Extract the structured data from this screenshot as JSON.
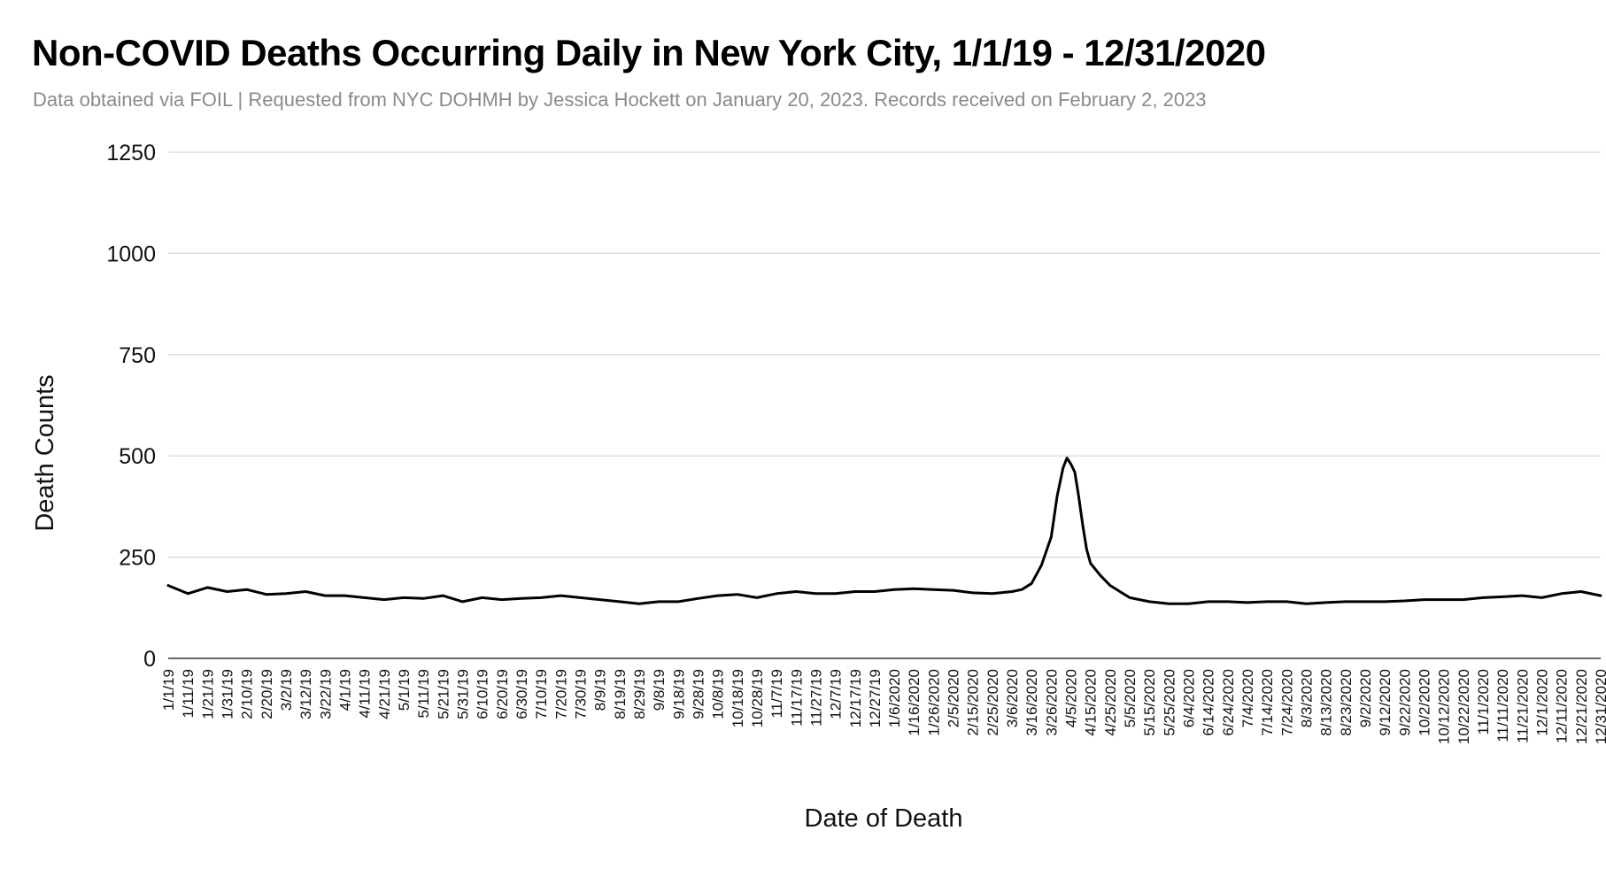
{
  "chart_data": {
    "type": "line",
    "title": "Non-COVID Deaths Occurring Daily in New York City, 1/1/19 - 12/31/2020",
    "subtitle": "Data obtained via FOIL | Requested from NYC DOHMH by Jessica Hockett on January 20, 2023. Records received on February 2, 2023",
    "xlabel": "Date of Death",
    "ylabel": "Death Counts",
    "ylim": [
      0,
      1250
    ],
    "yticks": [
      0,
      250,
      500,
      750,
      1000,
      1250
    ],
    "grid": true,
    "legend": "none",
    "x_tick_labels": [
      "1/1/19",
      "1/11/19",
      "1/21/19",
      "1/31/19",
      "2/10/19",
      "2/20/19",
      "3/2/19",
      "3/12/19",
      "3/22/19",
      "4/1/19",
      "4/11/19",
      "4/21/19",
      "5/1/19",
      "5/11/19",
      "5/21/19",
      "5/31/19",
      "6/10/19",
      "6/20/19",
      "6/30/19",
      "7/10/19",
      "7/20/19",
      "7/30/19",
      "8/9/19",
      "8/19/19",
      "8/29/19",
      "9/8/19",
      "9/18/19",
      "9/28/19",
      "10/8/19",
      "10/18/19",
      "10/28/19",
      "11/7/19",
      "11/17/19",
      "11/27/19",
      "12/7/19",
      "12/17/19",
      "12/27/19",
      "1/6/2020",
      "1/16/2020",
      "1/26/2020",
      "2/5/2020",
      "2/15/2020",
      "2/25/2020",
      "3/6/2020",
      "3/16/2020",
      "3/26/2020",
      "4/5/2020",
      "4/15/2020",
      "4/25/2020",
      "5/5/2020",
      "5/15/2020",
      "5/25/2020",
      "6/4/2020",
      "6/14/2020",
      "6/24/2020",
      "7/4/2020",
      "7/14/2020",
      "7/24/2020",
      "8/3/2020",
      "8/13/2020",
      "8/23/2020",
      "9/2/2020",
      "9/12/2020",
      "9/22/2020",
      "10/2/2020",
      "10/12/2020",
      "10/22/2020",
      "11/1/2020",
      "11/11/2020",
      "11/21/2020",
      "12/1/2020",
      "12/11/2020",
      "12/21/2020",
      "12/31/2020"
    ],
    "series": [
      {
        "color": "#000000",
        "x": [
          "1/1/19",
          "1/11/19",
          "1/21/19",
          "1/31/19",
          "2/10/19",
          "2/20/19",
          "3/2/19",
          "3/12/19",
          "3/22/19",
          "4/1/19",
          "4/11/19",
          "4/21/19",
          "5/1/19",
          "5/11/19",
          "5/21/19",
          "5/31/19",
          "6/10/19",
          "6/20/19",
          "6/30/19",
          "7/10/19",
          "7/20/19",
          "7/30/19",
          "8/9/19",
          "8/19/19",
          "8/29/19",
          "9/8/19",
          "9/18/19",
          "9/28/19",
          "10/8/19",
          "10/18/19",
          "10/28/19",
          "11/7/19",
          "11/17/19",
          "11/27/19",
          "12/7/19",
          "12/17/19",
          "12/27/19",
          "1/6/2020",
          "1/16/2020",
          "1/26/2020",
          "2/5/2020",
          "2/15/2020",
          "2/25/2020",
          "3/6/2020",
          "3/11/2020",
          "3/16/2020",
          "3/21/2020",
          "3/26/2020",
          "3/29/2020",
          "4/1/2020",
          "4/3/2020",
          "4/5/2020",
          "4/7/2020",
          "4/9/2020",
          "4/11/2020",
          "4/13/2020",
          "4/15/2020",
          "4/20/2020",
          "4/25/2020",
          "5/5/2020",
          "5/15/2020",
          "5/25/2020",
          "6/4/2020",
          "6/14/2020",
          "6/24/2020",
          "7/4/2020",
          "7/14/2020",
          "7/24/2020",
          "8/3/2020",
          "8/13/2020",
          "8/23/2020",
          "9/2/2020",
          "9/12/2020",
          "9/22/2020",
          "10/2/2020",
          "10/12/2020",
          "10/22/2020",
          "11/1/2020",
          "11/11/2020",
          "11/21/2020",
          "12/1/2020",
          "12/11/2020",
          "12/21/2020",
          "12/31/2020"
        ],
        "y": [
          180,
          160,
          175,
          165,
          170,
          158,
          160,
          165,
          155,
          155,
          150,
          145,
          150,
          148,
          155,
          140,
          150,
          145,
          148,
          150,
          155,
          150,
          145,
          140,
          135,
          140,
          140,
          148,
          155,
          158,
          150,
          160,
          165,
          160,
          160,
          165,
          165,
          170,
          172,
          170,
          168,
          162,
          160,
          165,
          170,
          185,
          230,
          300,
          400,
          470,
          495,
          480,
          460,
          400,
          330,
          270,
          235,
          205,
          180,
          150,
          140,
          135,
          135,
          140,
          140,
          138,
          140,
          140,
          135,
          138,
          140,
          140,
          140,
          142,
          145,
          145,
          145,
          150,
          152,
          155,
          150,
          160,
          165,
          155
        ]
      }
    ]
  }
}
